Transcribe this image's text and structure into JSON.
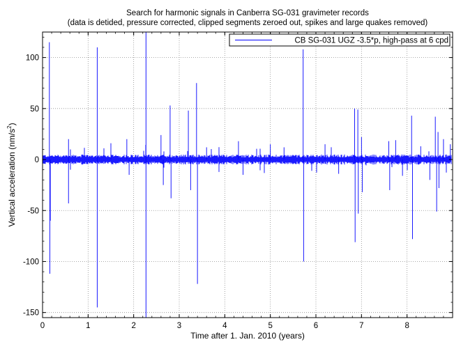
{
  "chart_data": {
    "type": "line",
    "title": "Search for harmonic signals in Canberra SG-031 gravimeter records",
    "subtitle": "(data is detided, pressure corrected, clipped segments zeroed out, spikes and large quakes removed)",
    "xlabel": "Time after 1. Jan. 2010 (years)",
    "ylabel_main": "Vertical acceleration (nm/s",
    "ylabel_sup": "2",
    "ylabel_close": ")",
    "xlim": [
      0,
      9
    ],
    "ylim": [
      -155,
      125
    ],
    "xticks": [
      0,
      1,
      2,
      3,
      4,
      5,
      6,
      7,
      8
    ],
    "yticks": [
      -150,
      -100,
      -50,
      0,
      50,
      100
    ],
    "grid": true,
    "legend_position": "top-right",
    "series": [
      {
        "name": "CB SG-031 UGZ -3.5*p, high-pass at 6 cpd",
        "color": "#0000ff",
        "noise_amplitude": 3.5,
        "spikes": [
          {
            "x": 0.15,
            "y": 115
          },
          {
            "x": 0.16,
            "y": -112
          },
          {
            "x": 0.17,
            "y": -60
          },
          {
            "x": 0.57,
            "y": 20
          },
          {
            "x": 0.57,
            "y": -43
          },
          {
            "x": 1.2,
            "y": 110
          },
          {
            "x": 1.2,
            "y": -145
          },
          {
            "x": 1.5,
            "y": 16
          },
          {
            "x": 1.85,
            "y": 20
          },
          {
            "x": 1.9,
            "y": -15
          },
          {
            "x": 2.27,
            "y": 125
          },
          {
            "x": 2.27,
            "y": -155
          },
          {
            "x": 2.6,
            "y": 24
          },
          {
            "x": 2.65,
            "y": -25
          },
          {
            "x": 2.8,
            "y": 53
          },
          {
            "x": 2.82,
            "y": -38
          },
          {
            "x": 3.2,
            "y": 48
          },
          {
            "x": 3.25,
            "y": -30
          },
          {
            "x": 3.38,
            "y": 75
          },
          {
            "x": 3.4,
            "y": -122
          },
          {
            "x": 3.6,
            "y": 12
          },
          {
            "x": 4.3,
            "y": 18
          },
          {
            "x": 4.4,
            "y": -15
          },
          {
            "x": 5.0,
            "y": 15
          },
          {
            "x": 5.3,
            "y": 12
          },
          {
            "x": 5.72,
            "y": 108
          },
          {
            "x": 5.73,
            "y": -100
          },
          {
            "x": 6.2,
            "y": 15
          },
          {
            "x": 6.5,
            "y": -14
          },
          {
            "x": 6.85,
            "y": 50
          },
          {
            "x": 6.86,
            "y": -81
          },
          {
            "x": 6.92,
            "y": 49
          },
          {
            "x": 6.93,
            "y": -53
          },
          {
            "x": 7.0,
            "y": 22
          },
          {
            "x": 7.02,
            "y": -32
          },
          {
            "x": 7.6,
            "y": 18
          },
          {
            "x": 7.62,
            "y": -30
          },
          {
            "x": 7.75,
            "y": 19
          },
          {
            "x": 7.9,
            "y": -16
          },
          {
            "x": 8.1,
            "y": 43
          },
          {
            "x": 8.12,
            "y": -78
          },
          {
            "x": 8.3,
            "y": 13
          },
          {
            "x": 8.5,
            "y": -20
          },
          {
            "x": 8.62,
            "y": 42
          },
          {
            "x": 8.65,
            "y": -51
          },
          {
            "x": 8.68,
            "y": 27
          },
          {
            "x": 8.7,
            "y": -28
          },
          {
            "x": 8.8,
            "y": 20
          },
          {
            "x": 8.95,
            "y": 15
          }
        ]
      }
    ]
  }
}
